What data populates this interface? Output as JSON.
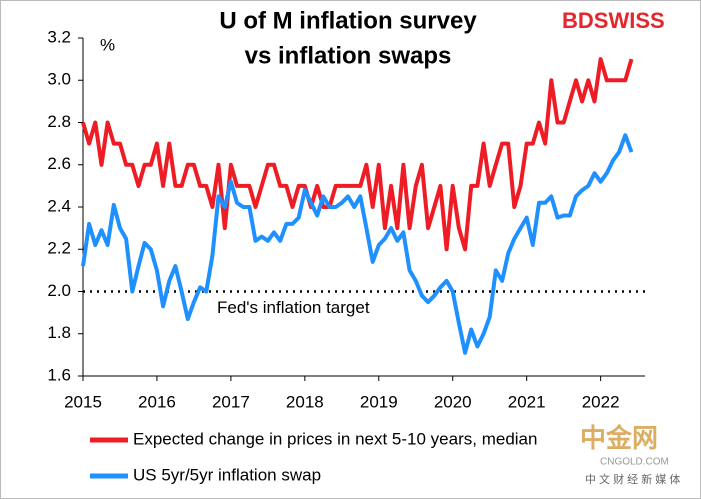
{
  "chart_data": {
    "type": "line",
    "title": [
      "U of M inflation survey",
      "vs inflation swaps"
    ],
    "y_unit_label": "%",
    "logo": "BDSWISS",
    "watermark": [
      "中金网",
      "CNGOLD.COM",
      "中 文 财 经 新 媒 体"
    ],
    "reference_line": {
      "value": 2.0,
      "label": "Fed's inflation target"
    },
    "x": [
      2015,
      2015.083,
      2015.167,
      2015.25,
      2015.333,
      2015.417,
      2015.5,
      2015.583,
      2015.667,
      2015.75,
      2015.833,
      2015.917,
      2016,
      2016.083,
      2016.167,
      2016.25,
      2016.333,
      2016.417,
      2016.5,
      2016.583,
      2016.667,
      2016.75,
      2016.833,
      2016.917,
      2017,
      2017.083,
      2017.167,
      2017.25,
      2017.333,
      2017.417,
      2017.5,
      2017.583,
      2017.667,
      2017.75,
      2017.833,
      2017.917,
      2018,
      2018.083,
      2018.167,
      2018.25,
      2018.333,
      2018.417,
      2018.5,
      2018.583,
      2018.667,
      2018.75,
      2018.833,
      2018.917,
      2019,
      2019.083,
      2019.167,
      2019.25,
      2019.333,
      2019.417,
      2019.5,
      2019.583,
      2019.667,
      2019.75,
      2019.833,
      2019.917,
      2020,
      2020.083,
      2020.167,
      2020.25,
      2020.333,
      2020.417,
      2020.5,
      2020.583,
      2020.667,
      2020.75,
      2020.833,
      2020.917,
      2021,
      2021.083,
      2021.167,
      2021.25,
      2021.333,
      2021.417,
      2021.5,
      2021.583,
      2021.667,
      2021.75,
      2021.833,
      2021.917,
      2022,
      2022.083,
      2022.167,
      2022.25,
      2022.333,
      2022.417
    ],
    "series": [
      {
        "name": "Expected change in prices in next 5-10 years, median",
        "color": "#ee1c25",
        "values": [
          2.8,
          2.7,
          2.8,
          2.6,
          2.8,
          2.7,
          2.7,
          2.6,
          2.6,
          2.5,
          2.6,
          2.6,
          2.7,
          2.5,
          2.7,
          2.5,
          2.5,
          2.6,
          2.6,
          2.5,
          2.5,
          2.4,
          2.6,
          2.3,
          2.6,
          2.5,
          2.5,
          2.5,
          2.4,
          2.5,
          2.6,
          2.6,
          2.5,
          2.5,
          2.4,
          2.5,
          2.5,
          2.4,
          2.5,
          2.4,
          2.4,
          2.5,
          2.5,
          2.5,
          2.5,
          2.5,
          2.6,
          2.4,
          2.6,
          2.3,
          2.5,
          2.3,
          2.6,
          2.3,
          2.5,
          2.6,
          2.3,
          2.4,
          2.5,
          2.2,
          2.5,
          2.3,
          2.2,
          2.5,
          2.5,
          2.7,
          2.5,
          2.6,
          2.7,
          2.7,
          2.4,
          2.5,
          2.7,
          2.7,
          2.8,
          2.7,
          3.0,
          2.8,
          2.8,
          2.9,
          3.0,
          2.9,
          3.0,
          2.9,
          3.1,
          3.0,
          3.0,
          3.0,
          3.0,
          3.1
        ]
      },
      {
        "name": "US 5yr/5yr inflation swap",
        "color": "#1e90ff",
        "values": [
          2.12,
          2.32,
          2.22,
          2.29,
          2.22,
          2.41,
          2.3,
          2.25,
          2.0,
          2.12,
          2.23,
          2.2,
          2.1,
          1.93,
          2.05,
          2.12,
          2.0,
          1.87,
          1.95,
          2.02,
          2.0,
          2.17,
          2.45,
          2.4,
          2.52,
          2.42,
          2.4,
          2.4,
          2.24,
          2.26,
          2.24,
          2.28,
          2.24,
          2.32,
          2.32,
          2.35,
          2.48,
          2.42,
          2.36,
          2.45,
          2.4,
          2.4,
          2.42,
          2.45,
          2.4,
          2.45,
          2.3,
          2.14,
          2.22,
          2.25,
          2.3,
          2.24,
          2.28,
          2.1,
          2.05,
          1.98,
          1.95,
          1.98,
          2.02,
          2.05,
          2.0,
          1.85,
          1.71,
          1.82,
          1.74,
          1.8,
          1.88,
          2.1,
          2.05,
          2.18,
          2.25,
          2.3,
          2.35,
          2.22,
          2.42,
          2.42,
          2.45,
          2.35,
          2.36,
          2.36,
          2.45,
          2.48,
          2.5,
          2.56,
          2.52,
          2.56,
          2.62,
          2.66,
          2.74,
          2.66
        ]
      }
    ],
    "xlim": [
      2015,
      2022.6
    ],
    "xticks": [
      2015,
      2016,
      2017,
      2018,
      2019,
      2020,
      2021,
      2022
    ],
    "ylim": [
      1.6,
      3.2
    ],
    "yticks": [
      {
        "value": 1.6,
        "label": "1.6"
      },
      {
        "value": 1.8,
        "label": "1.8"
      },
      {
        "value": 2.0,
        "label": "2.0"
      },
      {
        "value": 2.2,
        "label": "2.2"
      },
      {
        "value": 2.4,
        "label": "2.4"
      },
      {
        "value": 2.6,
        "label": "2.6"
      },
      {
        "value": 2.8,
        "label": "2.8"
      },
      {
        "value": 3.0,
        "label": "3.0"
      },
      {
        "value": 3.2,
        "label": "3.2"
      }
    ],
    "grid": false
  }
}
